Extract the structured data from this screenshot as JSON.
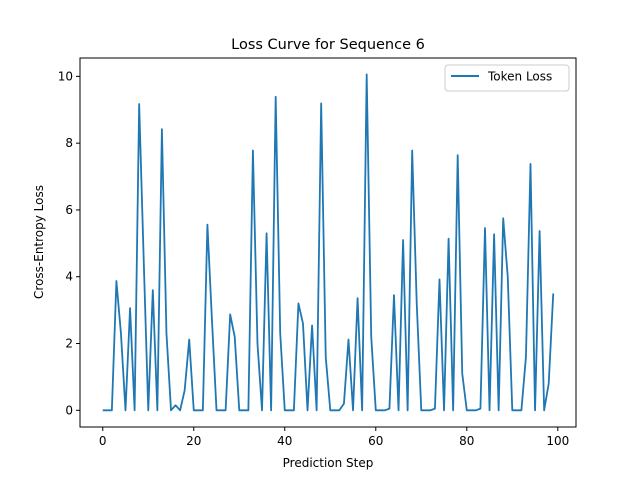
{
  "chart_data": {
    "type": "line",
    "title": "Loss Curve for Sequence 6",
    "xlabel": "Prediction Step",
    "ylabel": "Cross-Entropy Loss",
    "xlim": [
      -5,
      104
    ],
    "ylim": [
      -0.5,
      10.55
    ],
    "xticks": [
      0,
      20,
      40,
      60,
      80,
      100
    ],
    "yticks": [
      0,
      2,
      4,
      6,
      8,
      10
    ],
    "grid": false,
    "legend": {
      "placement": "top-right"
    },
    "series": [
      {
        "name": "Token Loss",
        "color": "#1f77b4",
        "x": [
          0,
          1,
          2,
          3,
          4,
          5,
          6,
          7,
          8,
          9,
          10,
          11,
          12,
          13,
          14,
          15,
          16,
          17,
          18,
          19,
          20,
          21,
          22,
          23,
          24,
          25,
          26,
          27,
          28,
          29,
          30,
          31,
          32,
          33,
          34,
          35,
          36,
          37,
          38,
          39,
          40,
          41,
          42,
          43,
          44,
          45,
          46,
          47,
          48,
          49,
          50,
          51,
          52,
          53,
          54,
          55,
          56,
          57,
          58,
          59,
          60,
          61,
          62,
          63,
          64,
          65,
          66,
          67,
          68,
          69,
          70,
          71,
          72,
          73,
          74,
          75,
          76,
          77,
          78,
          79,
          80,
          81,
          82,
          83,
          84,
          85,
          86,
          87,
          88,
          89,
          90,
          91,
          92,
          93,
          94,
          95,
          96,
          97,
          98,
          99
        ],
        "y": [
          0.0,
          0.0,
          0.0,
          3.87,
          2.3,
          0.0,
          3.06,
          0.0,
          9.17,
          4.5,
          0.0,
          3.6,
          0.0,
          8.42,
          2.3,
          0.0,
          0.15,
          0.0,
          0.6,
          2.12,
          0.0,
          0.0,
          0.0,
          5.56,
          2.7,
          0.0,
          0.0,
          0.0,
          2.87,
          2.2,
          0.0,
          0.0,
          0.0,
          7.78,
          2.0,
          0.0,
          5.3,
          0.0,
          9.39,
          2.3,
          0.0,
          0.0,
          0.0,
          3.2,
          2.6,
          0.0,
          2.54,
          0.0,
          9.19,
          1.6,
          0.0,
          0.0,
          0.0,
          0.2,
          2.12,
          0.0,
          3.36,
          0.0,
          10.06,
          2.2,
          0.0,
          0.0,
          0.0,
          0.05,
          3.45,
          0.0,
          5.1,
          0.0,
          7.78,
          3.2,
          0.0,
          0.0,
          0.0,
          0.05,
          3.92,
          0.0,
          5.14,
          0.0,
          7.64,
          1.1,
          0.0,
          0.0,
          0.0,
          0.05,
          5.46,
          0.0,
          5.27,
          0.0,
          5.75,
          4.0,
          0.0,
          0.0,
          0.0,
          1.6,
          7.38,
          0.0,
          5.37,
          0.0,
          0.8,
          3.5
        ]
      }
    ]
  }
}
